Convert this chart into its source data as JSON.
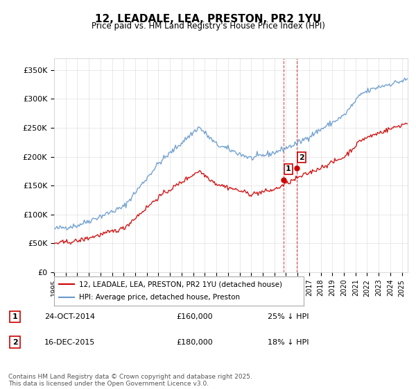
{
  "title": "12, LEADALE, LEA, PRESTON, PR2 1YU",
  "subtitle": "Price paid vs. HM Land Registry's House Price Index (HPI)",
  "ylabel_prefix": "£",
  "yticks": [
    0,
    50000,
    100000,
    150000,
    200000,
    250000,
    300000,
    350000
  ],
  "ytick_labels": [
    "£0",
    "£50K",
    "£100K",
    "£150K",
    "£200K",
    "£250K",
    "£300K",
    "£350K"
  ],
  "ylim": [
    0,
    370000
  ],
  "xlim_start": 1995.0,
  "xlim_end": 2025.5,
  "legend_label_red": "12, LEADALE, LEA, PRESTON, PR2 1YU (detached house)",
  "legend_label_blue": "HPI: Average price, detached house, Preston",
  "red_color": "#cc0000",
  "blue_color": "#6699cc",
  "marker1_date": 2014.82,
  "marker2_date": 2015.96,
  "marker1_price": 160000,
  "marker2_price": 180000,
  "marker1_label": "1",
  "marker2_label": "2",
  "transaction1": "24-OCT-2014",
  "transaction1_price": "£160,000",
  "transaction1_hpi": "25% ↓ HPI",
  "transaction2": "16-DEC-2015",
  "transaction2_price": "£180,000",
  "transaction2_hpi": "18% ↓ HPI",
  "footer": "Contains HM Land Registry data © Crown copyright and database right 2025.\nThis data is licensed under the Open Government Licence v3.0.",
  "background_color": "#ffffff",
  "grid_color": "#e0e0e0"
}
